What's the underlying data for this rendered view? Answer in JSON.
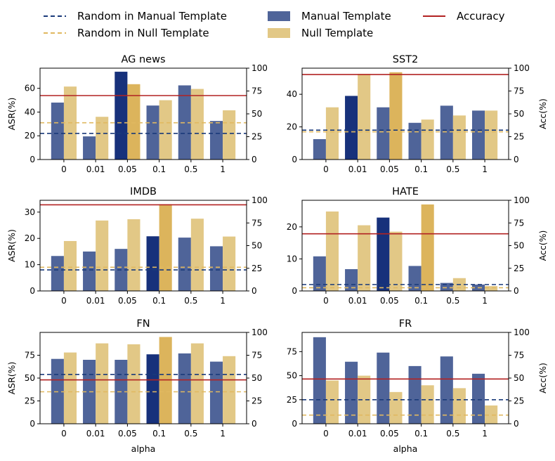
{
  "legend": {
    "placement": "top",
    "items": [
      {
        "label": "Random in Manual Template",
        "kind": "dashed-line",
        "color": "#1a3a7a"
      },
      {
        "label": "Random in Null Template",
        "kind": "dashed-line",
        "color": "#e0b860"
      },
      {
        "label": "Manual Template",
        "kind": "bar",
        "color": "#4f6499"
      },
      {
        "label": "Null Template",
        "kind": "bar",
        "color": "#e2c886"
      },
      {
        "label": "Accuracy",
        "kind": "line",
        "color": "#b22222"
      }
    ]
  },
  "colors": {
    "manual": "#4f6499",
    "manual_highlight": "#17317b",
    "null": "#e2c886",
    "null_highlight": "#dcb45c",
    "random_manual": "#1a3a7a",
    "random_null": "#e0b860",
    "accuracy": "#b22222"
  },
  "chart_data": [
    {
      "type": "bar",
      "title": "AG news",
      "xlabel": "",
      "ylabel": "ASR(%)",
      "y2label": "",
      "categories": [
        "0",
        "0.01",
        "0.05",
        "0.1",
        "0.5",
        "1"
      ],
      "ylim": [
        0,
        77
      ],
      "yticks": [
        0,
        20,
        40,
        60
      ],
      "y2lim": [
        0,
        100
      ],
      "y2ticks": [
        0,
        25,
        50,
        75,
        100
      ],
      "series": [
        {
          "name": "Manual Template",
          "values": [
            48,
            19.5,
            74,
            45.5,
            62.5,
            32.5
          ],
          "highlight": 2
        },
        {
          "name": "Null Template",
          "values": [
            61.5,
            36,
            63.5,
            50,
            59.5,
            41.5
          ],
          "highlight": 2
        }
      ],
      "random_manual": 22,
      "random_null": 31,
      "accuracy": 70
    },
    {
      "type": "bar",
      "title": "SST2",
      "xlabel": "",
      "ylabel": "",
      "y2label": "Acc(%)",
      "categories": [
        "0",
        "0.01",
        "0.05",
        "0.1",
        "0.5",
        "1"
      ],
      "ylim": [
        0,
        56
      ],
      "yticks": [
        0,
        20,
        40
      ],
      "y2lim": [
        0,
        100
      ],
      "y2ticks": [
        0,
        25,
        50,
        75,
        100
      ],
      "series": [
        {
          "name": "Manual Template",
          "values": [
            12.5,
            39,
            32,
            22.5,
            33,
            30
          ],
          "highlight": 1
        },
        {
          "name": "Null Template",
          "values": [
            32,
            52.5,
            53.5,
            24.5,
            27,
            30
          ],
          "highlight": 2
        }
      ],
      "random_manual": 18,
      "random_null": 17,
      "accuracy": 93
    },
    {
      "type": "bar",
      "title": "IMDB",
      "xlabel": "",
      "ylabel": "ASR(%)",
      "y2label": "",
      "categories": [
        "0",
        "0.01",
        "0.05",
        "0.1",
        "0.5",
        "1"
      ],
      "ylim": [
        0,
        34.5
      ],
      "yticks": [
        0,
        10,
        20,
        30
      ],
      "y2lim": [
        0,
        100
      ],
      "y2ticks": [
        0,
        25,
        50,
        75,
        100
      ],
      "series": [
        {
          "name": "Manual Template",
          "values": [
            13.3,
            15,
            16,
            20.8,
            20.3,
            17
          ],
          "highlight": 3
        },
        {
          "name": "Null Template",
          "values": [
            19,
            26.8,
            27.3,
            33,
            27.5,
            20.7
          ],
          "highlight": 3
        }
      ],
      "random_manual": 8,
      "random_null": 9,
      "accuracy": 95
    },
    {
      "type": "bar",
      "title": "HATE",
      "xlabel": "",
      "ylabel": "",
      "y2label": "Acc(%)",
      "categories": [
        "0",
        "0.01",
        "0.05",
        "0.1",
        "0.5",
        "1"
      ],
      "ylim": [
        0,
        28.3
      ],
      "yticks": [
        0,
        10,
        20
      ],
      "y2lim": [
        0,
        100
      ],
      "y2ticks": [
        0,
        25,
        50,
        75,
        100
      ],
      "series": [
        {
          "name": "Manual Template",
          "values": [
            10.8,
            6.8,
            22.9,
            7.8,
            2.5,
            2
          ],
          "highlight": 2
        },
        {
          "name": "Null Template",
          "values": [
            24.8,
            20.5,
            18.5,
            27,
            4,
            1.5
          ],
          "highlight": 3
        }
      ],
      "random_manual": 2,
      "random_null": 1,
      "accuracy": 63
    },
    {
      "type": "bar",
      "title": "FN",
      "xlabel": "alpha",
      "ylabel": "ASR(%)",
      "y2label": "",
      "categories": [
        "0",
        "0.01",
        "0.05",
        "0.1",
        "0.5",
        "1"
      ],
      "ylim": [
        0,
        100
      ],
      "yticks": [
        0,
        25,
        50,
        75
      ],
      "y2lim": [
        0,
        100
      ],
      "y2ticks": [
        0,
        25,
        50,
        75,
        100
      ],
      "series": [
        {
          "name": "Manual Template",
          "values": [
            71,
            70,
            70,
            76,
            77,
            68
          ],
          "highlight": 3
        },
        {
          "name": "Null Template",
          "values": [
            78,
            88,
            87,
            95,
            88,
            74
          ],
          "highlight": 3
        }
      ],
      "random_manual": 54,
      "random_null": 35,
      "accuracy": 48
    },
    {
      "type": "bar",
      "title": "FR",
      "xlabel": "alpha",
      "ylabel": "",
      "y2label": "Acc(%)",
      "categories": [
        "0",
        "0.01",
        "0.05",
        "0.1",
        "0.5",
        "1"
      ],
      "ylim": [
        0,
        95
      ],
      "yticks": [
        0,
        25,
        50,
        75
      ],
      "y2lim": [
        0,
        100
      ],
      "y2ticks": [
        0,
        25,
        50,
        75,
        100
      ],
      "series": [
        {
          "name": "Manual Template",
          "values": [
            90,
            64.5,
            74,
            60,
            70,
            52
          ],
          "highlight": -1
        },
        {
          "name": "Null Template",
          "values": [
            45,
            50,
            33,
            40,
            37,
            19
          ],
          "highlight": -1
        }
      ],
      "random_manual": 25,
      "random_null": 9,
      "accuracy": 49
    }
  ]
}
